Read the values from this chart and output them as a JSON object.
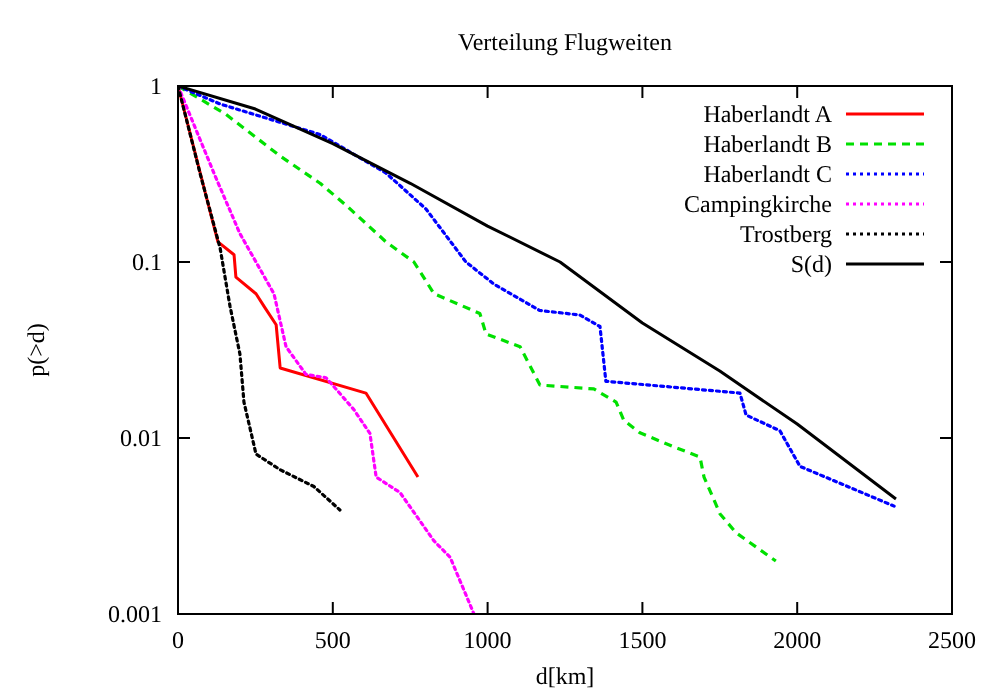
{
  "chart_data": {
    "type": "line",
    "title": "Verteilung Flugweiten",
    "xlabel": "d[km]",
    "ylabel": "p(>d)",
    "log": "y",
    "xlim": [
      0,
      2500
    ],
    "xticks": [
      0,
      500,
      1000,
      1500,
      2000,
      2500
    ],
    "ylim": [
      0.001,
      1
    ],
    "yticks": [
      0.001,
      0.01,
      0.1,
      1
    ],
    "grid": false,
    "legend": "top right",
    "marker": "none",
    "series": [
      {
        "name": "Haberlandt A",
        "color": "#ff0000",
        "line_style": "solid",
        "x": [
          0,
          90,
          129,
          181,
          187,
          252,
          278,
          317,
          330,
          607,
          775
        ],
        "values": [
          1,
          0.24,
          0.13,
          0.11,
          0.082,
          0.066,
          0.056,
          0.044,
          0.025,
          0.018,
          0.006
        ]
      },
      {
        "name": "Haberlandt B",
        "color": "#00e000",
        "line_style": "dashed",
        "x": [
          0,
          26,
          155,
          330,
          459,
          543,
          672,
          762,
          827,
          975,
          995,
          1105,
          1169,
          1343,
          1415,
          1440,
          1492,
          1602,
          1686,
          1699,
          1751,
          1802,
          1931
        ],
        "values": [
          1,
          0.94,
          0.69,
          0.4,
          0.28,
          0.21,
          0.13,
          0.1,
          0.066,
          0.051,
          0.039,
          0.033,
          0.02,
          0.019,
          0.016,
          0.0126,
          0.0107,
          0.0089,
          0.0078,
          0.006,
          0.0037,
          0.0029,
          0.002
        ]
      },
      {
        "name": "Haberlandt C",
        "color": "#0000ff",
        "line_style": "dotted",
        "x": [
          0,
          136,
          459,
          672,
          801,
          930,
          1020,
          1169,
          1298,
          1363,
          1382,
          1815,
          1835,
          1944,
          2009,
          2313
        ],
        "values": [
          1,
          0.79,
          0.53,
          0.32,
          0.2,
          0.1,
          0.075,
          0.053,
          0.05,
          0.043,
          0.021,
          0.018,
          0.0135,
          0.011,
          0.0069,
          0.0041
        ]
      },
      {
        "name": "Campingkirche",
        "color": "#ff00ff",
        "line_style": "dotted",
        "x": [
          0,
          116,
          200,
          310,
          349,
          413,
          478,
          510,
          568,
          620,
          640,
          717,
          827,
          879,
          956
        ],
        "values": [
          1,
          0.32,
          0.145,
          0.066,
          0.033,
          0.023,
          0.022,
          0.019,
          0.0145,
          0.0106,
          0.006,
          0.0049,
          0.0026,
          0.0021,
          0.001
        ]
      },
      {
        "name": "Trostberg",
        "color": "#000000",
        "line_style": "dotted",
        "x": [
          0,
          71,
          136,
          168,
          200,
          213,
          252,
          330,
          439,
          523
        ],
        "values": [
          1,
          0.32,
          0.12,
          0.056,
          0.03,
          0.016,
          0.0081,
          0.0066,
          0.0053,
          0.0039
        ]
      },
      {
        "name": "S(d)",
        "color": "#000000",
        "line_style": "solid",
        "x": [
          0,
          250,
          500,
          750,
          1000,
          1234,
          1500,
          1750,
          2000,
          2319
        ],
        "values": [
          1,
          0.74,
          0.47,
          0.28,
          0.16,
          0.1,
          0.045,
          0.024,
          0.012,
          0.0045
        ]
      }
    ]
  }
}
